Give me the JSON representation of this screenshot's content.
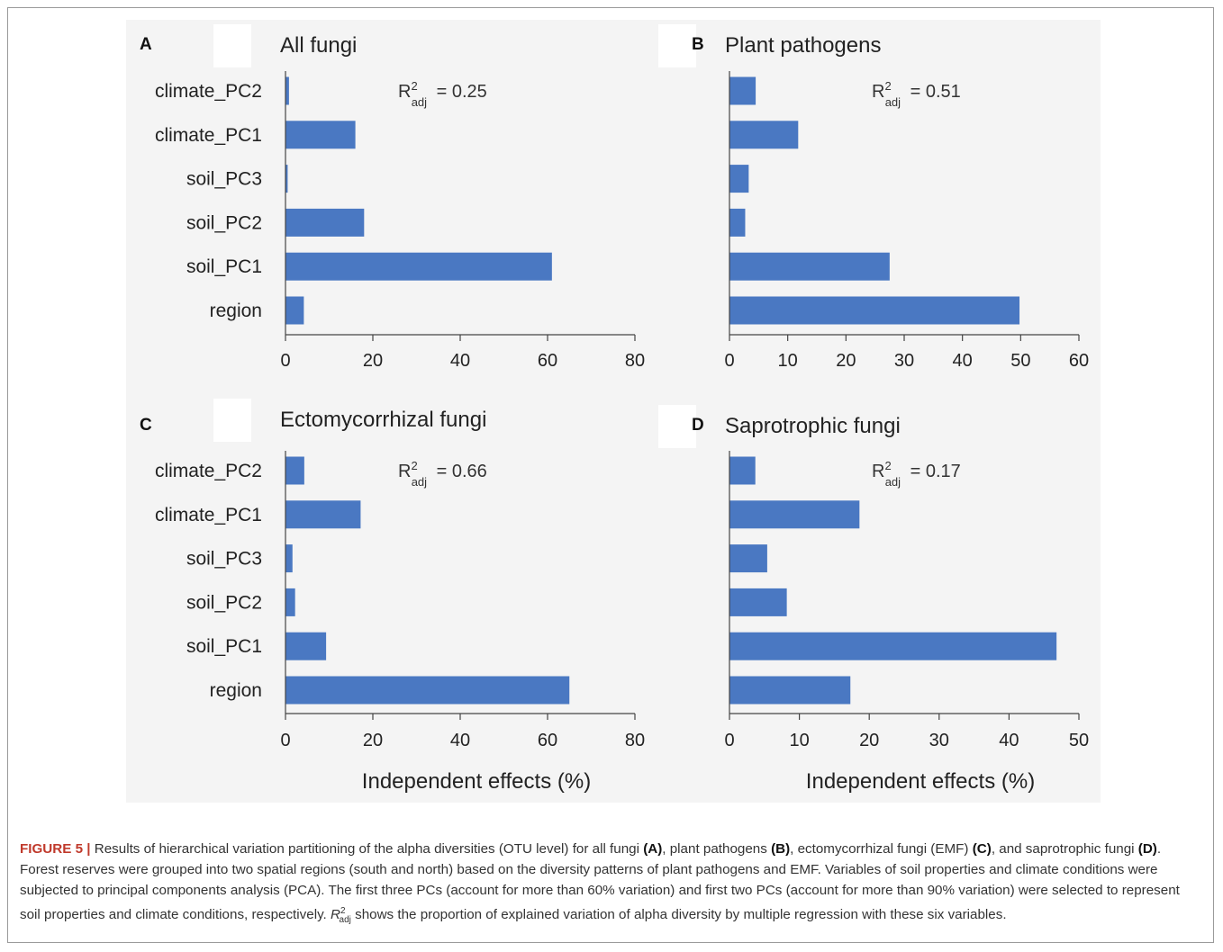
{
  "chart_data": [
    {
      "type": "bar",
      "orientation": "horizontal",
      "panel": "A",
      "title": "All fungi",
      "r2_label": "R",
      "r2_sup": "2",
      "r2_sub": "adj",
      "r2_value": "= 0.25",
      "categories": [
        "climate_PC2",
        "climate_PC1",
        "soil_PC3",
        "soil_PC2",
        "soil_PC1",
        "region"
      ],
      "values": [
        0.8,
        16,
        0.5,
        18,
        61,
        4.2
      ],
      "xlim": [
        0,
        80
      ],
      "xticks": [
        "0",
        "20",
        "40",
        "60",
        "80"
      ],
      "xlabel": ""
    },
    {
      "type": "bar",
      "orientation": "horizontal",
      "panel": "B",
      "title": "Plant pathogens",
      "r2_label": "R",
      "r2_sup": "2",
      "r2_sub": "adj",
      "r2_value": "= 0.51",
      "categories": [
        "climate_PC2",
        "climate_PC1",
        "soil_PC3",
        "soil_PC2",
        "soil_PC1",
        "region"
      ],
      "values": [
        4.5,
        11.8,
        3.3,
        2.7,
        27.5,
        49.8
      ],
      "xlim": [
        0,
        60
      ],
      "xticks": [
        "0",
        "10",
        "20",
        "30",
        "40",
        "50",
        "60"
      ],
      "xlabel": ""
    },
    {
      "type": "bar",
      "orientation": "horizontal",
      "panel": "C",
      "title": "Ectomycorrhizal fungi",
      "r2_label": "R",
      "r2_sup": "2",
      "r2_sub": "adj",
      "r2_value": "= 0.66",
      "categories": [
        "climate_PC2",
        "climate_PC1",
        "soil_PC3",
        "soil_PC2",
        "soil_PC1",
        "region"
      ],
      "values": [
        4.3,
        17.2,
        1.6,
        2.2,
        9.3,
        65
      ],
      "xlim": [
        0,
        80
      ],
      "xticks": [
        "0",
        "20",
        "40",
        "60",
        "80"
      ],
      "xlabel": "Independent effects (%)"
    },
    {
      "type": "bar",
      "orientation": "horizontal",
      "panel": "D",
      "title": "Saprotrophic fungi",
      "r2_label": "R",
      "r2_sup": "2",
      "r2_sub": "adj",
      "r2_value": "= 0.17",
      "categories": [
        "climate_PC2",
        "climate_PC1",
        "soil_PC3",
        "soil_PC2",
        "soil_PC1",
        "region"
      ],
      "values": [
        3.7,
        18.6,
        5.4,
        8.2,
        46.8,
        17.3
      ],
      "xlim": [
        0,
        50
      ],
      "xticks": [
        "0",
        "10",
        "20",
        "30",
        "40",
        "50"
      ],
      "xlabel": "Independent effects (%)"
    }
  ],
  "caption": {
    "figure_label": "FIGURE 5 |",
    "t1": " Results of hierarchical variation partitioning of the alpha diversities (OTU level) for all fungi ",
    "b1": "(A)",
    "t2": ", plant pathogens ",
    "b2": "(B)",
    "t3": ", ectomycorrhizal fungi (EMF) ",
    "b3": "(C)",
    "t4": ", and saprotrophic fungi ",
    "b4": "(D)",
    "t5": ". Forest reserves were grouped into two spatial regions (south and north) based on the diversity patterns of plant pathogens and EMF. Variables of soil properties and climate conditions were subjected to principal components analysis (PCA). The first three PCs (account for more than 60% variation) and first two PCs (account for more than 90% variation) were selected to represent soil properties and climate conditions, respectively. ",
    "r_symbol": "R",
    "r_sup": "2",
    "r_sub": "adj",
    "t6": " shows the proportion of explained variation of alpha diversity by multiple regression with these six variables."
  }
}
